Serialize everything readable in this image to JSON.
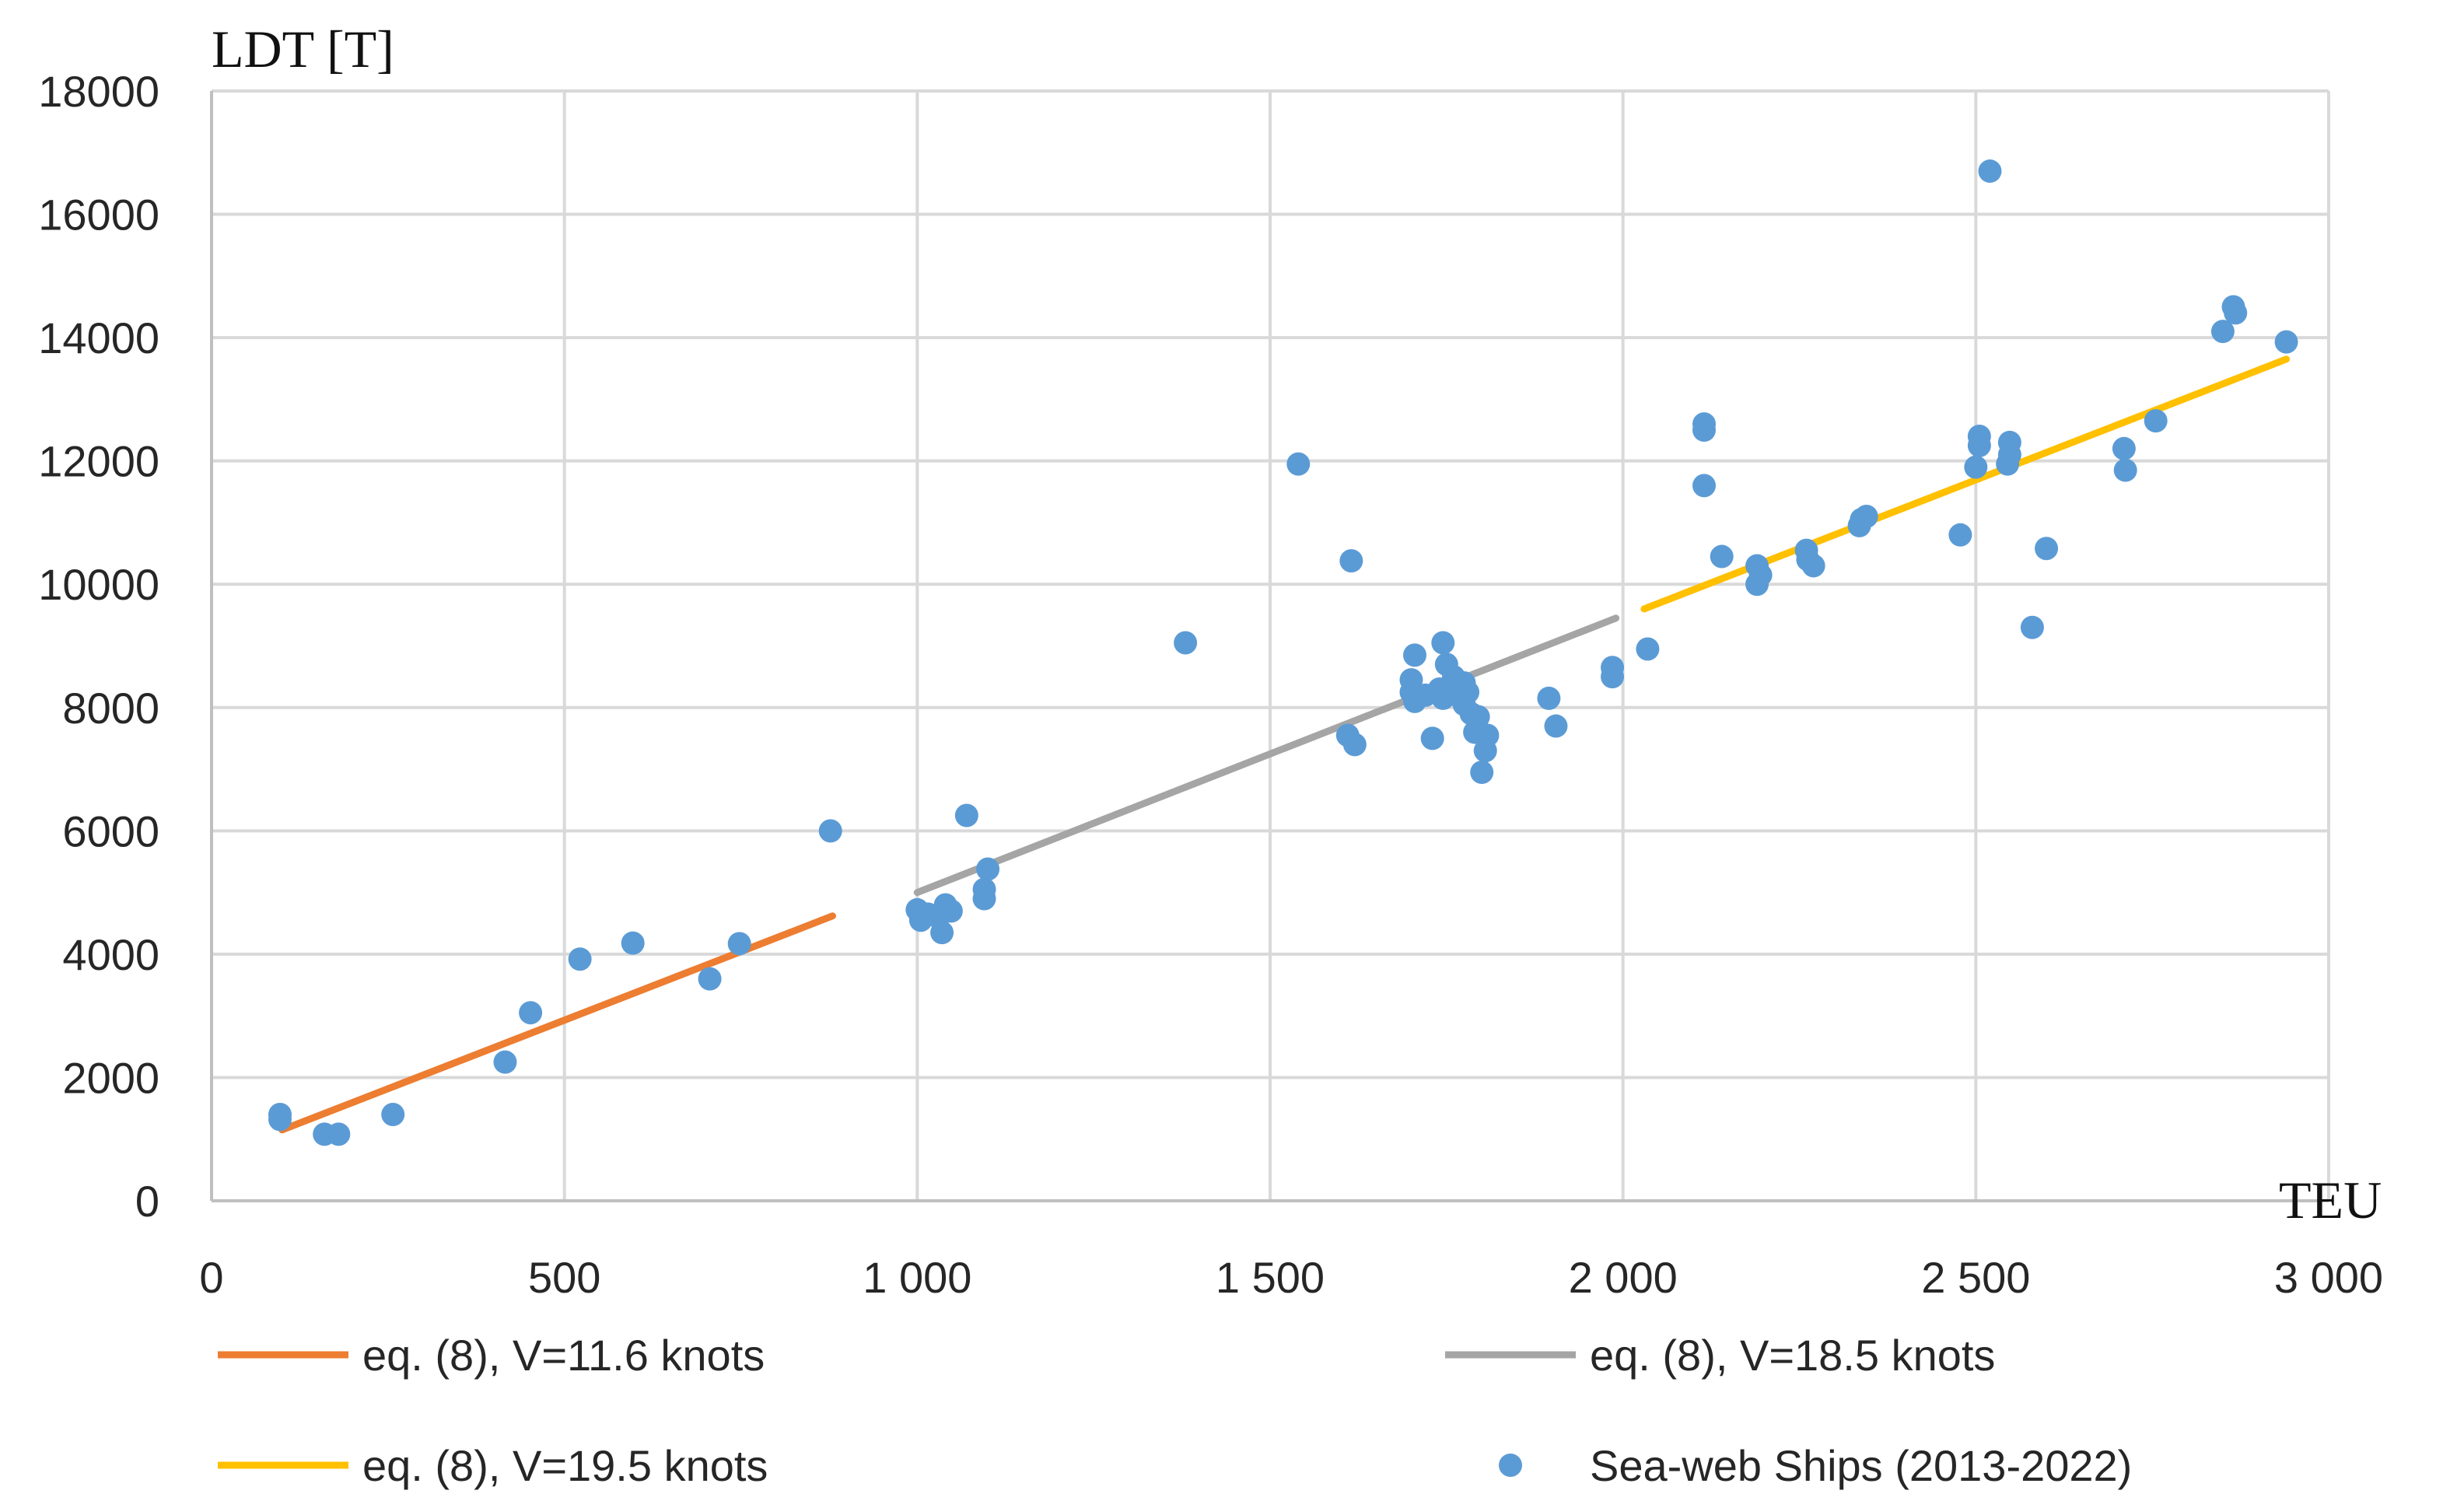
{
  "chart_data": {
    "type": "scatter",
    "title": "",
    "xlabel": "TEU",
    "ylabel": "LDT [T]",
    "xlim": [
      0,
      3000
    ],
    "ylim": [
      0,
      18000
    ],
    "x_ticks": [
      {
        "value": 0,
        "label": "0"
      },
      {
        "value": 500,
        "label": "500"
      },
      {
        "value": 1000,
        "label": "1 000"
      },
      {
        "value": 1500,
        "label": "1 500"
      },
      {
        "value": 2000,
        "label": "2 000"
      },
      {
        "value": 2500,
        "label": "2 500"
      },
      {
        "value": 3000,
        "label": "3 000"
      }
    ],
    "y_ticks": [
      {
        "value": 0,
        "label": "0"
      },
      {
        "value": 2000,
        "label": "2000"
      },
      {
        "value": 4000,
        "label": "4000"
      },
      {
        "value": 6000,
        "label": "6000"
      },
      {
        "value": 8000,
        "label": "8000"
      },
      {
        "value": 10000,
        "label": "10000"
      },
      {
        "value": 12000,
        "label": "12000"
      },
      {
        "value": 14000,
        "label": "14000"
      },
      {
        "value": 16000,
        "label": "16000"
      },
      {
        "value": 18000,
        "label": "18000"
      }
    ],
    "grid": true,
    "legend_position": "bottom",
    "lines": [
      {
        "name": "eq. (8), V=11.6 knots",
        "color": "#ED7D31",
        "x": [
          100,
          880
        ],
        "y": [
          1150,
          4620
        ]
      },
      {
        "name": "eq. (8), V=18.5 knots",
        "color": "#A5A5A5",
        "x": [
          1000,
          1990
        ],
        "y": [
          5000,
          9450
        ]
      },
      {
        "name": "eq. (8), V=19.5 knots",
        "color": "#FFC000",
        "x": [
          2030,
          2940
        ],
        "y": [
          9600,
          13650
        ]
      }
    ],
    "scatter": {
      "name": "Sea-web Ships (2013-2022)",
      "color": "#5B9BD5",
      "points": [
        [
          97,
          1400
        ],
        [
          97,
          1320
        ],
        [
          160,
          1080
        ],
        [
          180,
          1080
        ],
        [
          257,
          1400
        ],
        [
          416,
          2250
        ],
        [
          452,
          3050
        ],
        [
          522,
          3920
        ],
        [
          597,
          4180
        ],
        [
          706,
          3600
        ],
        [
          748,
          4170
        ],
        [
          877,
          6000
        ],
        [
          1000,
          4720
        ],
        [
          1005,
          4550
        ],
        [
          1015,
          4650
        ],
        [
          1030,
          4600
        ],
        [
          1035,
          4350
        ],
        [
          1040,
          4800
        ],
        [
          1048,
          4700
        ],
        [
          1070,
          6250
        ],
        [
          1095,
          4900
        ],
        [
          1095,
          5050
        ],
        [
          1100,
          5380
        ],
        [
          1380,
          9050
        ],
        [
          1540,
          11950
        ],
        [
          1615,
          10380
        ],
        [
          1610,
          7550
        ],
        [
          1620,
          7400
        ],
        [
          1700,
          8250
        ],
        [
          1700,
          8450
        ],
        [
          1705,
          8850
        ],
        [
          1705,
          8100
        ],
        [
          1720,
          8200
        ],
        [
          1730,
          7500
        ],
        [
          1740,
          8300
        ],
        [
          1745,
          9050
        ],
        [
          1745,
          8150
        ],
        [
          1750,
          8700
        ],
        [
          1760,
          8500
        ],
        [
          1765,
          8200
        ],
        [
          1775,
          8400
        ],
        [
          1775,
          8050
        ],
        [
          1780,
          8250
        ],
        [
          1785,
          7900
        ],
        [
          1790,
          7600
        ],
        [
          1795,
          7850
        ],
        [
          1800,
          6950
        ],
        [
          1805,
          7300
        ],
        [
          1808,
          7550
        ],
        [
          1895,
          8150
        ],
        [
          1905,
          7700
        ],
        [
          1985,
          8500
        ],
        [
          1985,
          8650
        ],
        [
          2035,
          8950
        ],
        [
          2115,
          12600
        ],
        [
          2115,
          12500
        ],
        [
          2115,
          11600
        ],
        [
          2140,
          10450
        ],
        [
          2190,
          10300
        ],
        [
          2190,
          10000
        ],
        [
          2195,
          10150
        ],
        [
          2260,
          10550
        ],
        [
          2262,
          10400
        ],
        [
          2270,
          10300
        ],
        [
          2335,
          10950
        ],
        [
          2338,
          11050
        ],
        [
          2345,
          11100
        ],
        [
          2478,
          10800
        ],
        [
          2500,
          11900
        ],
        [
          2505,
          12400
        ],
        [
          2505,
          12250
        ],
        [
          2520,
          16700
        ],
        [
          2545,
          11950
        ],
        [
          2548,
          12100
        ],
        [
          2548,
          12300
        ],
        [
          2580,
          9300
        ],
        [
          2600,
          10580
        ],
        [
          2710,
          12200
        ],
        [
          2712,
          11850
        ],
        [
          2755,
          12650
        ],
        [
          2850,
          14100
        ],
        [
          2865,
          14500
        ],
        [
          2868,
          14400
        ],
        [
          2940,
          13930
        ]
      ]
    }
  },
  "legend": [
    {
      "label": "eq. (8), V=11.6 knots",
      "kind": "line",
      "color": "#ED7D31"
    },
    {
      "label": "eq. (8), V=18.5 knots",
      "kind": "line",
      "color": "#A5A5A5"
    },
    {
      "label": "eq. (8), V=19.5 knots",
      "kind": "line",
      "color": "#FFC000"
    },
    {
      "label": "Sea-web Ships (2013-2022)",
      "kind": "marker",
      "color": "#5B9BD5"
    }
  ]
}
